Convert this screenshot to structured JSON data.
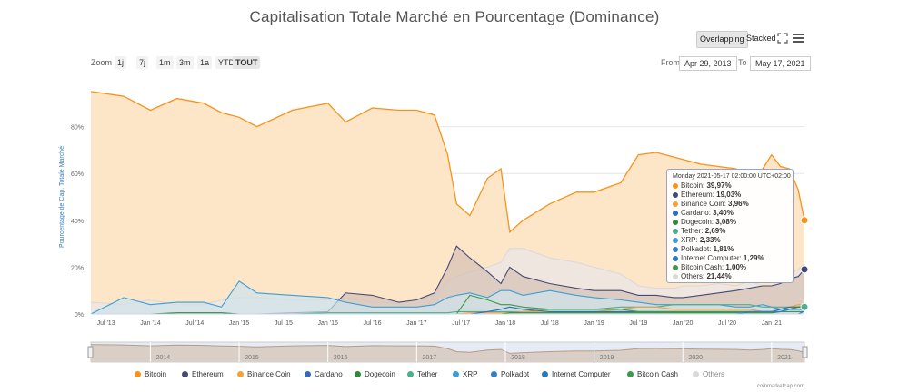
{
  "title": "Capitalisation Totale Marché en Pourcentage (Dominance)",
  "modes": {
    "overlapping": "Overlapping",
    "stacked": "Stacked"
  },
  "zoom": {
    "label": "Zoom",
    "buttons": [
      "1j",
      "7j",
      "1m",
      "3m",
      "1a",
      "YTD",
      "TOUT"
    ],
    "active": "TOUT"
  },
  "range": {
    "from_label": "From",
    "from": "Apr 29, 2013",
    "to_label": "To",
    "to": "May 17, 2021"
  },
  "credits": "coinmarketcap.com",
  "tooltip": {
    "header": "Monday 2021-05-17 02:00:00 UTC+02:00",
    "rows": [
      {
        "name": "Bitcoin",
        "value": "39,97%",
        "color": "#f7931a"
      },
      {
        "name": "Ethereum",
        "value": "19,03%",
        "color": "#454a75"
      },
      {
        "name": "Binance Coin",
        "value": "3,96%",
        "color": "#f3a23a"
      },
      {
        "name": "Cardano",
        "value": "3,40%",
        "color": "#2f6fba"
      },
      {
        "name": "Dogecoin",
        "value": "3,08%",
        "color": "#2e8b3a"
      },
      {
        "name": "Tether",
        "value": "2,69%",
        "color": "#4fae8d"
      },
      {
        "name": "XRP",
        "value": "2,33%",
        "color": "#3a9fd8"
      },
      {
        "name": "Polkadot",
        "value": "1,81%",
        "color": "#2f7fc9"
      },
      {
        "name": "Internet Computer",
        "value": "1,29%",
        "color": "#2a7ab8"
      },
      {
        "name": "Bitcoin Cash",
        "value": "1,00%",
        "color": "#3d9a49"
      },
      {
        "name": "Others",
        "value": "21,44%",
        "color": "#d9d9d9"
      }
    ]
  },
  "chart_data": {
    "type": "area",
    "title": "Capitalisation Totale Marché en Pourcentage (Dominance)",
    "ylabel": "Pourcentage de Cap. Totale Marché",
    "ylim": [
      0,
      100
    ],
    "y_ticks": [
      "0%",
      "20%",
      "40%",
      "60%",
      "80%"
    ],
    "x_ticks": [
      "Jul '13",
      "Jan '14",
      "Jul '14",
      "Jan '15",
      "Jul '15",
      "Jan '16",
      "Jul '16",
      "Jan '17",
      "Jul '17",
      "Jan '18",
      "Jul '18",
      "Jan '19",
      "Jul '19",
      "Jan '20",
      "Jul '20",
      "Jan '21"
    ],
    "navigator_ticks": [
      "2014",
      "2015",
      "2016",
      "2017",
      "2018",
      "2019",
      "2020",
      "2021"
    ],
    "legend_position": "bottom",
    "x": [
      2013.33,
      2013.7,
      2014.0,
      2014.3,
      2014.6,
      2014.8,
      2015.0,
      2015.2,
      2015.6,
      2016.0,
      2016.2,
      2016.5,
      2016.8,
      2017.0,
      2017.2,
      2017.35,
      2017.45,
      2017.6,
      2017.8,
      2017.95,
      2018.05,
      2018.2,
      2018.5,
      2018.8,
      2019.0,
      2019.3,
      2019.5,
      2019.7,
      2019.9,
      2020.0,
      2020.2,
      2020.4,
      2020.6,
      2020.75,
      2020.9,
      2021.0,
      2021.1,
      2021.2,
      2021.3,
      2021.37
    ],
    "series": [
      {
        "name": "Bitcoin",
        "color": "#f7931a",
        "values": [
          95,
          93,
          87,
          92,
          90,
          86,
          84,
          80,
          87,
          90,
          82,
          88,
          87,
          87,
          85,
          68,
          47,
          42,
          58,
          62,
          35,
          40,
          47,
          52,
          52,
          56,
          68,
          69,
          67,
          66,
          64,
          63,
          62,
          58,
          62,
          68,
          63,
          62,
          53,
          40
        ],
        "fill": "#fde5c8"
      },
      {
        "name": "Others",
        "color": "#d9d9d9",
        "values": [
          5,
          4,
          6,
          4,
          4,
          6,
          7,
          7,
          6,
          6,
          7,
          5,
          5,
          6,
          8,
          14,
          16,
          18,
          20,
          22,
          28,
          28,
          24,
          22,
          20,
          17,
          12,
          11,
          11,
          12,
          12,
          13,
          12,
          14,
          12,
          12,
          15,
          17,
          19,
          21.44
        ],
        "fill": "#e8e8e8"
      },
      {
        "name": "Ethereum",
        "color": "#454a75",
        "values": [
          0,
          0,
          0,
          0,
          0,
          0,
          0,
          0,
          0.5,
          1,
          9,
          8,
          5,
          6,
          9,
          20,
          29,
          24,
          18,
          13,
          20,
          16,
          13,
          11,
          10,
          10,
          8,
          8,
          7,
          7,
          8,
          9,
          10,
          11,
          12,
          12,
          13,
          15,
          16,
          19.03
        ],
        "fill": "#d4c0b5"
      },
      {
        "name": "XRP",
        "color": "#3a9fd8",
        "values": [
          0,
          7,
          4,
          5,
          5,
          3,
          14,
          9,
          8,
          7,
          5,
          3,
          3,
          3,
          4,
          7,
          8,
          9,
          7,
          10,
          10,
          8,
          10,
          8,
          7,
          6,
          5,
          4,
          4,
          4,
          4,
          4,
          3,
          3,
          4,
          3,
          2,
          2,
          2,
          2.33
        ],
        "fill": "#cfe3ea"
      },
      {
        "name": "Tether",
        "color": "#4fae8d",
        "values": [
          0,
          0,
          0,
          0,
          0,
          0,
          0,
          0,
          0,
          0.5,
          0.5,
          0.5,
          0.5,
          0.5,
          0.5,
          0.5,
          1,
          1,
          1,
          1,
          1,
          1,
          2,
          2,
          2,
          3,
          3,
          3,
          4,
          4,
          4,
          4,
          4,
          4,
          3,
          3,
          3,
          3,
          3,
          2.69
        ]
      },
      {
        "name": "Binance Coin",
        "color": "#f3a23a",
        "values": [
          0,
          0,
          0,
          0,
          0,
          0,
          0,
          0,
          0,
          0,
          0,
          0,
          0,
          0,
          0,
          0,
          0,
          0.5,
          0.5,
          0.5,
          0.5,
          1,
          1,
          1,
          1,
          2,
          3,
          3,
          2,
          2,
          2,
          2,
          2,
          2,
          1,
          1,
          2,
          3,
          4,
          3.96
        ]
      },
      {
        "name": "Cardano",
        "color": "#2f6fba",
        "values": [
          0,
          0,
          0,
          0,
          0,
          0,
          0,
          0,
          0,
          0,
          0,
          0,
          0,
          0,
          0,
          0,
          0,
          0,
          1,
          2,
          3,
          2,
          1,
          1,
          1,
          1,
          1,
          1,
          1,
          1,
          1,
          1,
          1,
          1,
          1,
          1,
          2,
          3,
          3,
          3.4
        ]
      },
      {
        "name": "Dogecoin",
        "color": "#2e8b3a",
        "values": [
          0,
          0,
          0,
          0.5,
          0.5,
          0.5,
          0,
          0,
          0,
          0,
          0,
          0,
          0,
          0,
          0,
          0,
          0,
          0,
          0,
          0,
          0.5,
          0.5,
          0.5,
          0.5,
          0.5,
          0.5,
          0.5,
          0.5,
          0.5,
          0.5,
          0.5,
          0.5,
          0.5,
          0.5,
          0.5,
          0.5,
          1,
          2,
          3,
          3.08
        ]
      },
      {
        "name": "Bitcoin Cash",
        "color": "#3d9a49",
        "values": [
          0,
          0,
          0,
          0,
          0,
          0,
          0,
          0,
          0,
          0,
          0,
          0,
          0,
          0,
          0,
          0,
          0,
          8,
          6,
          4,
          4,
          3,
          2,
          2,
          2,
          2,
          1,
          1,
          1,
          1,
          1,
          1,
          1,
          1,
          1,
          1,
          1,
          1,
          1,
          1.0
        ]
      },
      {
        "name": "Polkadot",
        "color": "#2f7fc9",
        "values": [
          0,
          0,
          0,
          0,
          0,
          0,
          0,
          0,
          0,
          0,
          0,
          0,
          0,
          0,
          0,
          0,
          0,
          0,
          0,
          0,
          0,
          0,
          0,
          0,
          0,
          0,
          0,
          0,
          0,
          0,
          0,
          0,
          0,
          1,
          1,
          1,
          1,
          2,
          2,
          1.81
        ]
      },
      {
        "name": "Internet Computer",
        "color": "#2a7ab8",
        "values": [
          0,
          0,
          0,
          0,
          0,
          0,
          0,
          0,
          0,
          0,
          0,
          0,
          0,
          0,
          0,
          0,
          0,
          0,
          0,
          0,
          0,
          0,
          0,
          0,
          0,
          0,
          0,
          0,
          0,
          0,
          0,
          0,
          0,
          0,
          0,
          0,
          0,
          0,
          0,
          1.29
        ]
      }
    ],
    "legend": [
      "Bitcoin",
      "Ethereum",
      "Binance Coin",
      "Cardano",
      "Dogecoin",
      "Tether",
      "XRP",
      "Polkadot",
      "Internet Computer",
      "Bitcoin Cash",
      "Others"
    ]
  }
}
